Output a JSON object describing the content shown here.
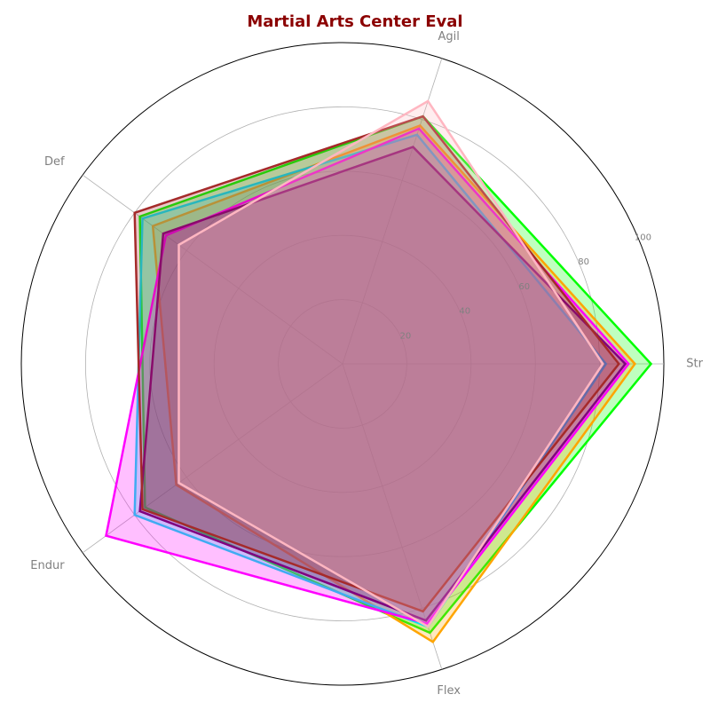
{
  "chart_data": {
    "type": "radar",
    "title": "Martial Arts Center Eval",
    "title_color": "#8b0000",
    "axes": [
      "Str",
      "Agil",
      "Def",
      "Endur",
      "Flex"
    ],
    "rlim": [
      0,
      100
    ],
    "rticks": [
      20,
      40,
      60,
      80,
      100
    ],
    "rtick_labels": [
      "20",
      "40",
      "60",
      "80",
      "100"
    ],
    "grid": true,
    "legend": "none",
    "series": [
      {
        "color": "#00ff00",
        "values": [
          96,
          81,
          78,
          76,
          88
        ]
      },
      {
        "color": "#ffa500",
        "values": [
          91,
          78,
          73,
          64,
          91
        ]
      },
      {
        "color": "#00e5ee",
        "values": [
          82,
          75,
          77,
          80,
          86
        ]
      },
      {
        "color": "#ff00ff",
        "values": [
          89,
          77,
          68,
          91,
          85
        ]
      },
      {
        "color": "#800080",
        "values": [
          88,
          71,
          69,
          78,
          84
        ]
      },
      {
        "color": "#a52a2a",
        "values": [
          86,
          81,
          80,
          77,
          81
        ]
      },
      {
        "color": "#ffb6c1",
        "values": [
          81,
          86,
          63,
          63,
          86
        ]
      }
    ]
  }
}
